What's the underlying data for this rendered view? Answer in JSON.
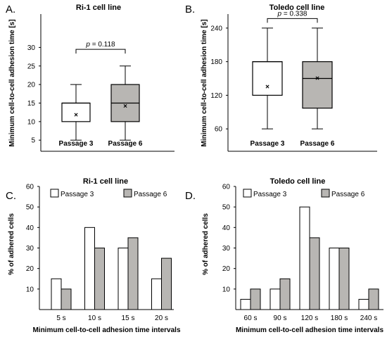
{
  "colors": {
    "passage3": "#ffffff",
    "passage6": "#b8b6b3",
    "stroke": "#000000"
  },
  "chart_data": [
    {
      "panel": "A.",
      "type": "box",
      "title": "Ri-1 cell line",
      "ylabel": "Minimum cell-to-cell adhesion time [s]",
      "xlabel": "",
      "ylim": [
        2,
        39
      ],
      "yticks": [
        5,
        10,
        15,
        20,
        25,
        30
      ],
      "categories": [
        "Passage 3",
        "Passage 6"
      ],
      "boxes": [
        {
          "name": "Passage 3",
          "whisker_low": 5,
          "q1": 10,
          "median": 15,
          "q3": 15,
          "whisker_high": 20,
          "mean": 12
        },
        {
          "name": "Passage 6",
          "whisker_low": 5,
          "q1": 10,
          "median": 15,
          "q3": 20,
          "whisker_high": 25,
          "mean": 14.3
        }
      ],
      "annotation": "p = 0.118",
      "bracket_y": 29.5
    },
    {
      "panel": "B.",
      "type": "box",
      "title": "Toledo cell line",
      "ylabel": "Minimum cell-to-cell adhesion time [s]",
      "xlabel": "",
      "ylim": [
        20,
        265
      ],
      "yticks": [
        60,
        120,
        180,
        240
      ],
      "categories": [
        "Passage 3",
        "Passage 6"
      ],
      "boxes": [
        {
          "name": "Passage 3",
          "whisker_low": 60,
          "q1": 120,
          "median": 180,
          "q3": 180,
          "whisker_high": 240,
          "mean": 136
        },
        {
          "name": "Passage 6",
          "whisker_low": 60,
          "q1": 97,
          "median": 150,
          "q3": 180,
          "whisker_high": 240,
          "mean": 151
        }
      ],
      "annotation": "p = 0.338",
      "bracket_y": 257
    },
    {
      "panel": "C.",
      "type": "bar",
      "title": "Ri-1 cell line",
      "ylabel": "% of adhered cells",
      "xlabel": "Minimum cell-to-cell adhesion time intervals",
      "ylim": [
        0,
        60
      ],
      "yticks": [
        10,
        20,
        30,
        40,
        50,
        60
      ],
      "categories": [
        "5 s",
        "10 s",
        "15 s",
        "20 s"
      ],
      "series": [
        {
          "name": "Passage 3",
          "values": [
            15,
            40,
            30,
            15
          ]
        },
        {
          "name": "Passage 6",
          "values": [
            10,
            30,
            35,
            25
          ]
        }
      ]
    },
    {
      "panel": "D.",
      "type": "bar",
      "title": "Toledo cell line",
      "ylabel": "% of adhered cells",
      "xlabel": "Minimum cell-to-cell adhesion time intervals",
      "ylim": [
        0,
        60
      ],
      "yticks": [
        10,
        20,
        30,
        40,
        50,
        60
      ],
      "categories": [
        "60 s",
        "90 s",
        "120 s",
        "180 s",
        "240 s"
      ],
      "series": [
        {
          "name": "Passage 3",
          "values": [
            5,
            10,
            50,
            30,
            5
          ]
        },
        {
          "name": "Passage 6",
          "values": [
            10,
            15,
            35,
            30,
            10
          ]
        }
      ]
    }
  ]
}
